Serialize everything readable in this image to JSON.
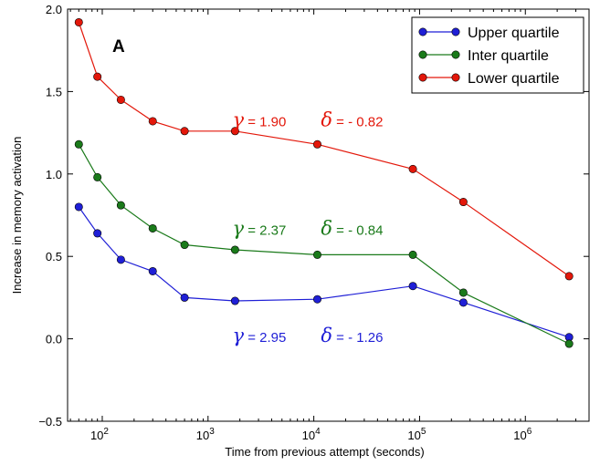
{
  "chart_data": {
    "type": "line",
    "panel_label": "A",
    "xlabel": "Time from previous attempt (seconds)",
    "ylabel": "Increase in memory activation",
    "xscale": "log",
    "xlim": [
      47,
      4000000
    ],
    "ylim": [
      -0.5,
      2.0
    ],
    "yticks": [
      {
        "value": -0.5,
        "label": "−0.5"
      },
      {
        "value": 0.0,
        "label": "0.0"
      },
      {
        "value": 0.5,
        "label": "0.5"
      },
      {
        "value": 1.0,
        "label": "1.0"
      },
      {
        "value": 1.5,
        "label": "1.5"
      },
      {
        "value": 2.0,
        "label": "2.0"
      }
    ],
    "xticks": [
      {
        "value": 100,
        "base": "10",
        "exp": "2"
      },
      {
        "value": 1000,
        "base": "10",
        "exp": "3"
      },
      {
        "value": 10000,
        "base": "10",
        "exp": "4"
      },
      {
        "value": 100000,
        "base": "10",
        "exp": "5"
      },
      {
        "value": 1000000,
        "base": "10",
        "exp": "6"
      }
    ],
    "grid": false,
    "legend_position": "top-right",
    "series": [
      {
        "name": "Upper quartile",
        "color": "#1f1fd6",
        "x": [
          60,
          90,
          150,
          300,
          600,
          1800,
          10800,
          86400,
          259200,
          2592000
        ],
        "y": [
          0.8,
          0.64,
          0.48,
          0.41,
          0.25,
          0.23,
          0.24,
          0.32,
          0.22,
          0.01
        ],
        "params": {
          "gamma_symbol": "γ",
          "gamma_value": " = 2.95",
          "delta_symbol": "δ",
          "delta_value": " = - 1.26",
          "label_x": 1700,
          "label_y": -0.02
        }
      },
      {
        "name": "Inter quartile",
        "color": "#1a7a1a",
        "x": [
          60,
          90,
          150,
          300,
          600,
          1800,
          10800,
          86400,
          259200,
          2592000
        ],
        "y": [
          1.18,
          0.98,
          0.81,
          0.67,
          0.57,
          0.54,
          0.51,
          0.51,
          0.28,
          -0.03
        ],
        "params": {
          "gamma_symbol": "γ",
          "gamma_value": " = 2.37",
          "delta_symbol": "δ",
          "delta_value": " = - 0.84",
          "label_x": 1700,
          "label_y": 0.63
        }
      },
      {
        "name": "Lower quartile",
        "color": "#e3170a",
        "x": [
          60,
          90,
          150,
          300,
          600,
          1800,
          10800,
          86400,
          259200,
          2592000
        ],
        "y": [
          1.92,
          1.59,
          1.45,
          1.32,
          1.26,
          1.26,
          1.18,
          1.03,
          0.83,
          0.38
        ],
        "params": {
          "gamma_symbol": "γ",
          "gamma_value": " = 1.90",
          "delta_symbol": "δ",
          "delta_value": " = - 0.82",
          "label_x": 1700,
          "label_y": 1.29
        }
      }
    ]
  }
}
